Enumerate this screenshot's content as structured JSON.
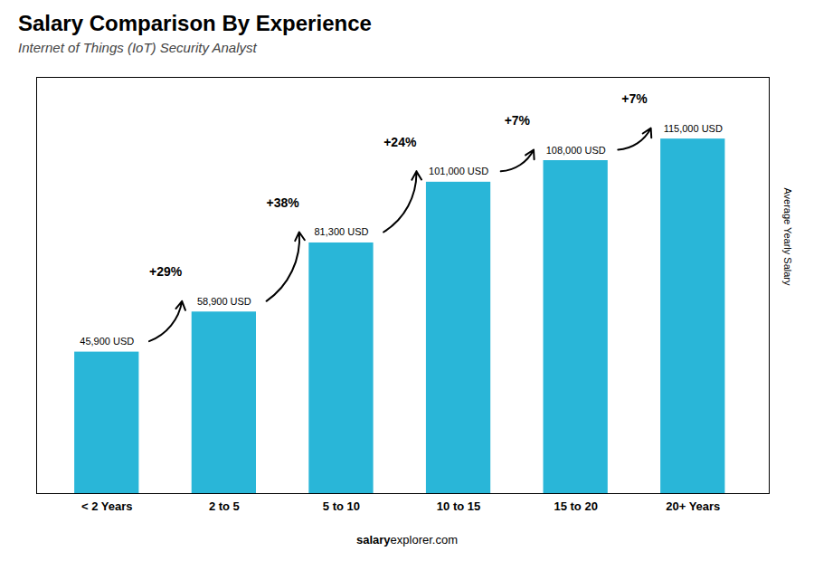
{
  "chart_data": {
    "type": "bar",
    "title": "Salary Comparison By Experience",
    "subtitle": "Internet of Things (IoT) Security Analyst",
    "categories": [
      "< 2 Years",
      "2 to 5",
      "5 to 10",
      "10 to 15",
      "15 to 20",
      "20+ Years"
    ],
    "values": [
      45900,
      58900,
      81300,
      101000,
      108000,
      115000
    ],
    "value_labels": [
      "45,900 USD",
      "58,900 USD",
      "81,300 USD",
      "101,000 USD",
      "108,000 USD",
      "115,000 USD"
    ],
    "data_labels": true,
    "annotations": [
      "+29%",
      "+38%",
      "+24%",
      "+7%",
      "+7%"
    ],
    "ylabel": "Average Yearly Salary",
    "caption": [
      "salary",
      "explorer.com"
    ],
    "color": "#29b6d8",
    "ylim": [
      0,
      135000
    ],
    "tick_labels": "x",
    "grid": false
  }
}
